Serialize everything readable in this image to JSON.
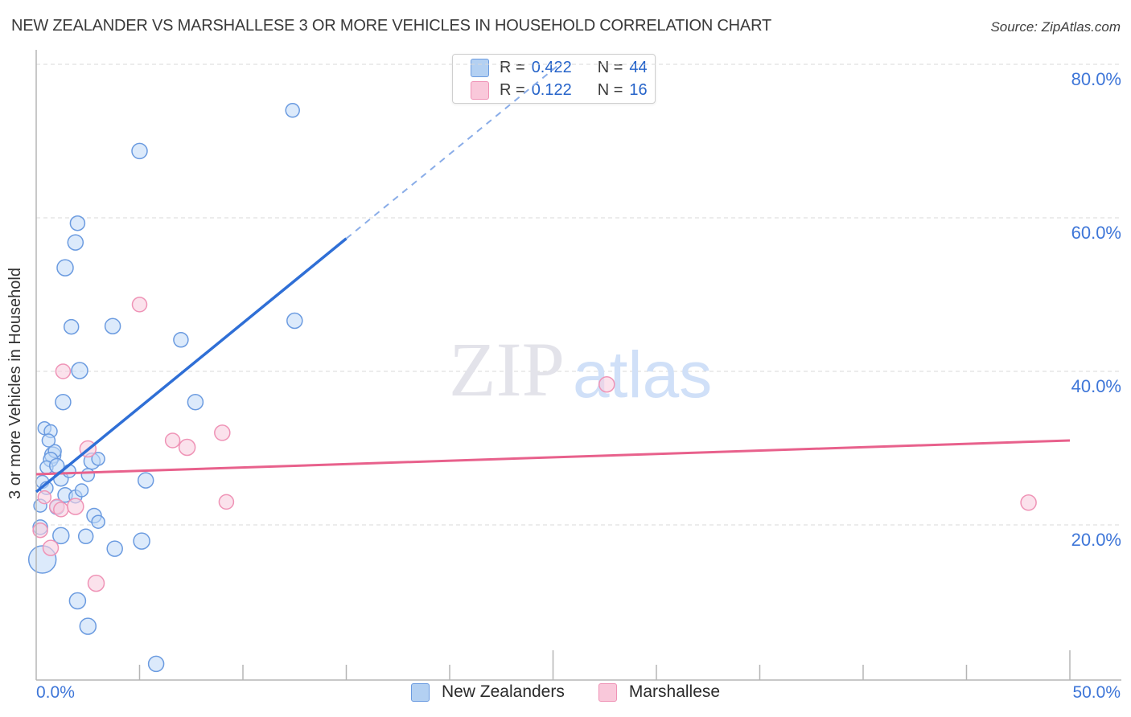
{
  "header": {
    "title": "NEW ZEALANDER VS MARSHALLESE 3 OR MORE VEHICLES IN HOUSEHOLD CORRELATION CHART",
    "source": "Source: ZipAtlas.com"
  },
  "watermark": {
    "part1": "ZIP",
    "part2": "atlas"
  },
  "correlation_legend": {
    "rows": [
      {
        "series": "New Zealanders",
        "r_label": "R =",
        "r_value": "0.422",
        "n_label": "N =",
        "n_value": "44"
      },
      {
        "series": "Marshallese",
        "r_label": "R =",
        "r_value": "0.122",
        "n_label": "N =",
        "n_value": "16"
      }
    ]
  },
  "bottom_legend": {
    "items": [
      "New Zealanders",
      "Marshallese"
    ]
  },
  "chart_data": {
    "type": "scatter",
    "title": "New Zealander vs Marshallese 3 or more Vehicles in Household",
    "xlabel": "",
    "ylabel": "3 or more Vehicles in Household",
    "x_axis": {
      "min": 0,
      "max": 50,
      "min_label": "0.0%",
      "max_label": "50.0%",
      "tick_step": 5,
      "major_ticks": [
        25,
        50
      ],
      "unit": "percent"
    },
    "y_axis": {
      "min": 0,
      "max": 84,
      "gridlines": [
        {
          "value": 20,
          "label": "20.0%"
        },
        {
          "value": 40,
          "label": "40.0%"
        },
        {
          "value": 60,
          "label": "60.0%"
        },
        {
          "value": 80,
          "label": "80.0%"
        }
      ]
    },
    "series": [
      {
        "name": "New Zealanders",
        "color_fill": "rgba(191,216,247,0.55)",
        "color_stroke": "#6b9be0",
        "r": 0.422,
        "n": 44,
        "points": [
          [
            12.4,
            74.0,
            8.5
          ],
          [
            5.0,
            68.7,
            9.5
          ],
          [
            2.0,
            59.3,
            9
          ],
          [
            1.9,
            56.8,
            9.5
          ],
          [
            1.4,
            53.5,
            10
          ],
          [
            1.7,
            45.8,
            9
          ],
          [
            3.7,
            45.9,
            9.5
          ],
          [
            7.0,
            44.1,
            9
          ],
          [
            12.5,
            46.6,
            9.5
          ],
          [
            2.1,
            40.1,
            10
          ],
          [
            1.3,
            36.0,
            9.5
          ],
          [
            7.7,
            36.0,
            9.5
          ],
          [
            0.4,
            32.6,
            8
          ],
          [
            0.7,
            32.2,
            8
          ],
          [
            0.8,
            29.1,
            10
          ],
          [
            0.9,
            29.6,
            8
          ],
          [
            0.7,
            28.5,
            9
          ],
          [
            0.5,
            27.5,
            8
          ],
          [
            1.0,
            27.7,
            9
          ],
          [
            2.7,
            28.3,
            10
          ],
          [
            3.0,
            28.6,
            8
          ],
          [
            1.2,
            26.0,
            9
          ],
          [
            2.5,
            26.5,
            8
          ],
          [
            0.3,
            25.6,
            8
          ],
          [
            0.5,
            24.8,
            8
          ],
          [
            5.3,
            25.8,
            9.5
          ],
          [
            1.4,
            23.9,
            9
          ],
          [
            1.9,
            23.7,
            8
          ],
          [
            0.2,
            22.5,
            8
          ],
          [
            1.0,
            22.3,
            9
          ],
          [
            2.8,
            21.2,
            9
          ],
          [
            3.0,
            20.4,
            8
          ],
          [
            0.2,
            19.7,
            9
          ],
          [
            1.2,
            18.6,
            10
          ],
          [
            2.4,
            18.5,
            9
          ],
          [
            3.8,
            16.9,
            9.5
          ],
          [
            5.1,
            17.9,
            10
          ],
          [
            0.3,
            15.5,
            17
          ],
          [
            2.0,
            10.1,
            10
          ],
          [
            2.5,
            6.8,
            10
          ],
          [
            5.8,
            1.9,
            9.5
          ],
          [
            0.6,
            31.0,
            8
          ],
          [
            1.6,
            27.0,
            8
          ],
          [
            2.2,
            24.5,
            8
          ]
        ],
        "trend_solid": [
          [
            0,
            24.3
          ],
          [
            15.0,
            57.3
          ]
        ],
        "trend_dashed": [
          [
            15.0,
            57.3
          ],
          [
            25.4,
            80.2
          ]
        ]
      },
      {
        "name": "Marshallese",
        "color_fill": "rgba(249,207,223,0.6)",
        "color_stroke": "#ef93b6",
        "r": 0.122,
        "n": 16,
        "points": [
          [
            5.0,
            48.7,
            9
          ],
          [
            1.3,
            40.0,
            9
          ],
          [
            27.6,
            38.3,
            9.5
          ],
          [
            9.2,
            23.0,
            9
          ],
          [
            48.0,
            22.9,
            9.5
          ],
          [
            7.3,
            30.1,
            10
          ],
          [
            6.6,
            31.0,
            9
          ],
          [
            9.0,
            32.0,
            9.5
          ],
          [
            2.5,
            29.9,
            10
          ],
          [
            1.0,
            22.4,
            9
          ],
          [
            1.2,
            22.0,
            9
          ],
          [
            1.9,
            22.4,
            10
          ],
          [
            0.4,
            23.6,
            8
          ],
          [
            0.2,
            19.3,
            9
          ],
          [
            0.7,
            17.0,
            9.5
          ],
          [
            2.9,
            12.4,
            10
          ]
        ],
        "trend_solid": [
          [
            0,
            26.6
          ],
          [
            50,
            31.0
          ]
        ],
        "trend_dashed": null
      }
    ],
    "colors": {
      "blue_trend": "#2f6fd6",
      "blue_trend_dashed": "#8aade8",
      "pink_trend": "#e8618c",
      "grid": "#d8d8d8",
      "axis": "#b5b5b5",
      "tick": "#b5b5b5",
      "axis_label": "#3e76d8",
      "watermark_zip": "#e3e3ea",
      "watermark_atlas": "#d0e0f8",
      "ylabel_text": "#333333"
    },
    "layout_hints": {
      "grid": "dashed-horizontal",
      "legend_position": "bottom-center",
      "rn_box_position": "top-center"
    }
  }
}
